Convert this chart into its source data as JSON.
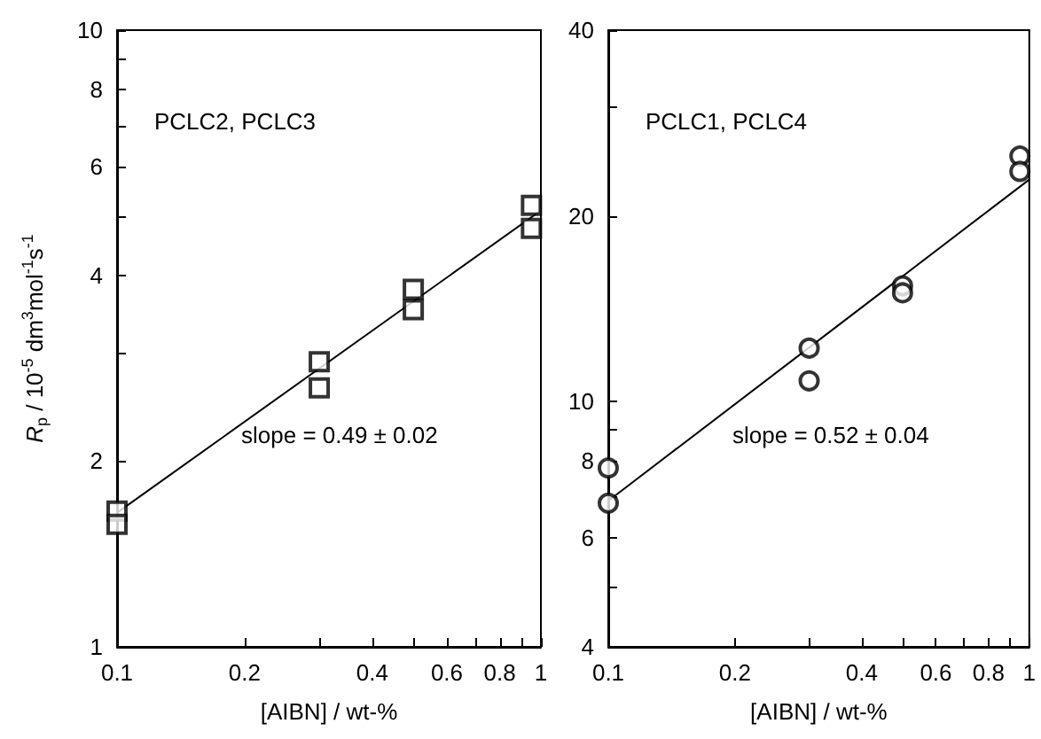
{
  "chart_data": [
    {
      "type": "scatter",
      "xlabel": "[AIBN] / wt-%",
      "ylabel": "R$_{p}$ / 10$^{-5}$ dm$^{3}$mol$^{-1}$s$^{-1}$",
      "log": "xy",
      "grid": false,
      "annotations": [
        "PCLC2, PCLC3",
        "slope = 0.49 ± 0.02"
      ],
      "xlim": [
        0.1,
        1
      ],
      "xticks": [
        0.1,
        0.2,
        {
          "value": 0.3,
          "label": null
        },
        0.4,
        {
          "value": 0.5,
          "label": null
        },
        0.6,
        {
          "value": 0.7,
          "label": null
        },
        0.8,
        {
          "value": 0.9,
          "label": null
        },
        1
      ],
      "ylim": [
        1,
        10
      ],
      "yticks": [
        1,
        2,
        {
          "value": 3,
          "label": null
        },
        4,
        {
          "value": 5,
          "label": null
        },
        6,
        {
          "value": 7,
          "label": null
        },
        8,
        {
          "value": 9,
          "label": null
        },
        10
      ],
      "series": [
        {
          "marker": "square",
          "color": "#000000",
          "x": [
            0.1,
            0.1,
            0.3,
            0.3,
            0.5,
            0.5,
            0.95,
            0.95
          ],
          "values": [
            1.66,
            1.58,
            2.9,
            2.63,
            3.8,
            3.52,
            5.2,
            4.77
          ]
        },
        {
          "type": "line",
          "marker": "none",
          "line_style": "solid",
          "color": "#000000",
          "x": [
            0.1,
            1
          ],
          "values": [
            1.65,
            5.1
          ]
        }
      ]
    },
    {
      "type": "scatter",
      "xlabel": "[AIBN] / wt-%",
      "log": "xy",
      "grid": false,
      "annotations": [
        "PCLC1, PCLC4",
        "slope = 0.52 ± 0.04"
      ],
      "xlim": [
        0.1,
        1
      ],
      "xticks": [
        0.1,
        0.2,
        {
          "value": 0.3,
          "label": null
        },
        0.4,
        {
          "value": 0.5,
          "label": null
        },
        0.6,
        {
          "value": 0.7,
          "label": null
        },
        0.8,
        {
          "value": 0.9,
          "label": null
        },
        1
      ],
      "ylim": [
        4,
        40
      ],
      "yticks": [
        4,
        {
          "value": 5,
          "label": null
        },
        6,
        {
          "value": 7,
          "label": null
        },
        8,
        {
          "value": 9,
          "label": null
        },
        10,
        20,
        {
          "value": 30,
          "label": null
        },
        40
      ],
      "series": [
        {
          "marker": "circle",
          "color": "#000000",
          "x": [
            0.1,
            0.1,
            0.3,
            0.3,
            0.5,
            0.5,
            0.95,
            0.95
          ],
          "values": [
            7.8,
            6.84,
            12.2,
            10.8,
            15.4,
            15.0,
            25.0,
            23.6
          ]
        },
        {
          "type": "line",
          "marker": "none",
          "line_style": "solid",
          "color": "#000000",
          "x": [
            0.1,
            1
          ],
          "values": [
            6.9,
            22.9
          ]
        }
      ]
    }
  ]
}
